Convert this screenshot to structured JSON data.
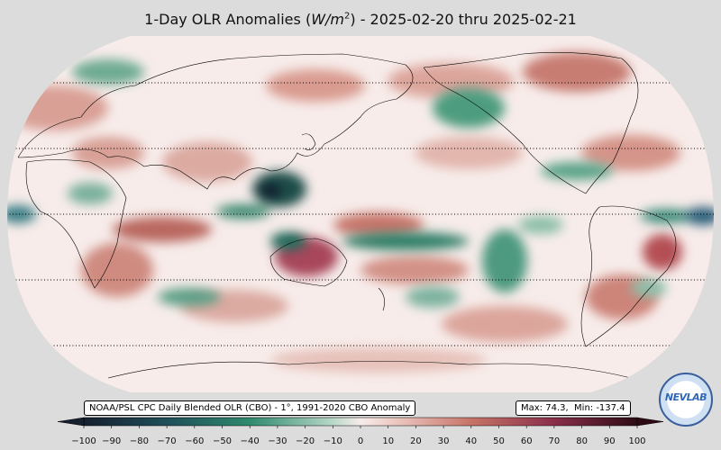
{
  "title": {
    "prefix": "1-Day OLR Anomalies (",
    "unit_base": "W/m",
    "unit_exp": "2",
    "suffix": ") - 2025-02-20 thru 2025-02-21"
  },
  "source_label": "NOAA/PSL CPC Daily Blended OLR (CBO) - 1°, 1991-2020 CBO Anomaly",
  "stats": {
    "max_label": "Max: 74.3,",
    "min_label": "Min: -137.4"
  },
  "logo_text": "NEVLAB",
  "colors": {
    "background": "#dcdcdc",
    "negative_max": "#16202e",
    "negative_mid": "#2f8a6e",
    "neutral": "#f7ecea",
    "positive_mid": "#c77468",
    "positive_max": "#2e0b14"
  },
  "colorbar": {
    "ticks": [
      "−100",
      "−90",
      "−80",
      "−70",
      "−60",
      "−50",
      "−40",
      "−30",
      "−20",
      "−10",
      "0",
      "10",
      "20",
      "30",
      "40",
      "50",
      "60",
      "70",
      "80",
      "90",
      "100"
    ],
    "range": [
      -100,
      100
    ],
    "step": 10,
    "extend": "both"
  },
  "map": {
    "projection": "Robinson",
    "central_longitude": 180,
    "parallels_dotted": [
      "60N",
      "30N",
      "0",
      "30S",
      "60S"
    ]
  }
}
